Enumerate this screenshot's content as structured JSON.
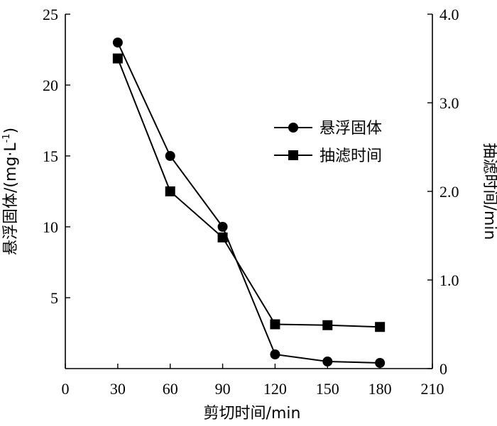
{
  "chart_data": {
    "type": "line",
    "xlabel": "剪切时间/min",
    "ylabel_left_main": "悬浮固体/(mg·L",
    "ylabel_left_sup": "-1",
    "ylabel_left_close": ")",
    "ylabel_right": "抽滤时间/min",
    "x_ticks": [
      "0",
      "30",
      "60",
      "90",
      "120",
      "150",
      "180",
      "210"
    ],
    "y_left_ticks": [
      "5",
      "10",
      "15",
      "20",
      "25"
    ],
    "y_right_ticks": [
      "0",
      "1.0",
      "2.0",
      "3.0",
      "4.0"
    ],
    "xlim": [
      0,
      210
    ],
    "ylim_left": [
      0,
      25
    ],
    "ylim_right": [
      0,
      4
    ],
    "legend_position": "top-right",
    "series": [
      {
        "name": "悬浮固体",
        "axis": "left",
        "marker": "circle",
        "x": [
          30,
          60,
          90,
          120,
          150,
          180
        ],
        "y": [
          23.0,
          15.0,
          10.0,
          1.0,
          0.5,
          0.4
        ]
      },
      {
        "name": "抽滤时间",
        "axis": "right",
        "marker": "square",
        "x": [
          30,
          60,
          90,
          120,
          150,
          180
        ],
        "y": [
          3.5,
          2.0,
          1.48,
          0.5,
          0.49,
          0.47
        ]
      }
    ]
  }
}
